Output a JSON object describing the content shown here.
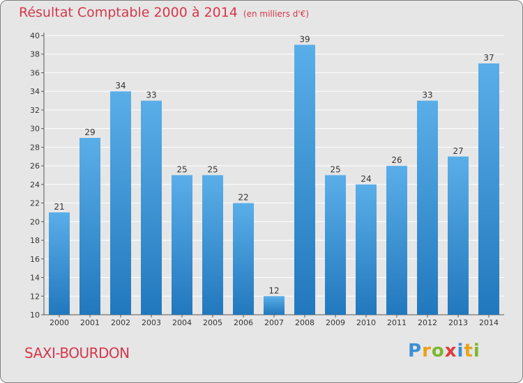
{
  "title": "Résultat Comptable 2000 à 2014",
  "unit": "(en milliers d'€)",
  "commune": "SAXI-BOURDON",
  "logo": {
    "letters": [
      "P",
      "r",
      "o",
      "x",
      "i",
      "t",
      "i"
    ],
    "colors": [
      "#3a8fd6",
      "#e8a21a",
      "#7cb82f",
      "#e23a3a",
      "#3a8fd6",
      "#e8a21a",
      "#7cb82f"
    ]
  },
  "colors": {
    "bar_light": "#5aaee8",
    "bar_dark": "#2278bd",
    "grid": "#ffffff",
    "title": "#d4374a"
  },
  "chart_data": {
    "type": "bar",
    "title": "Résultat Comptable 2000 à 2014",
    "subtitle": "(en milliers d'€)",
    "xlabel": "",
    "ylabel": "",
    "categories": [
      "2000",
      "2001",
      "2002",
      "2003",
      "2004",
      "2005",
      "2006",
      "2007",
      "2008",
      "2009",
      "2010",
      "2011",
      "2012",
      "2013",
      "2014"
    ],
    "values": [
      21,
      29,
      34,
      33,
      25,
      25,
      22,
      12,
      39,
      25,
      24,
      26,
      33,
      27,
      37
    ],
    "ylim": [
      10,
      40
    ],
    "yticks": [
      10,
      12,
      14,
      16,
      18,
      20,
      22,
      24,
      26,
      28,
      30,
      32,
      34,
      36,
      38,
      40
    ],
    "grid": true
  }
}
